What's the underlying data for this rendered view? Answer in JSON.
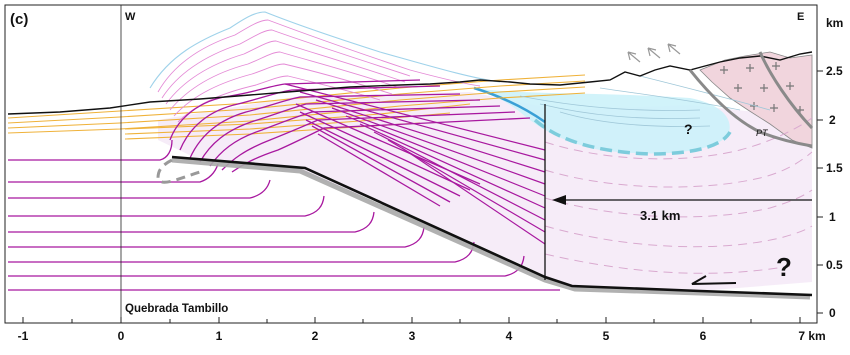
{
  "panel_label": "(c)",
  "west_label": "W",
  "east_label": "E",
  "location_label": "Quebrada Tambillo",
  "shortening_label": "3.1 km",
  "unknown_marks": [
    "?",
    "?"
  ],
  "fault_label": "PT",
  "x_axis": {
    "ticks": [
      "-1",
      "0",
      "1",
      "2",
      "3",
      "4",
      "5",
      "6",
      "7 km"
    ],
    "values": [
      -1,
      0,
      1,
      2,
      3,
      4,
      5,
      6,
      7
    ]
  },
  "y_axis": {
    "unit": "km",
    "ticks": [
      "2.5",
      "2",
      "1.5",
      "1",
      "0.5",
      "0"
    ],
    "values": [
      2.5,
      2,
      1.5,
      1,
      0.5,
      0
    ]
  },
  "colors": {
    "strata": "#a8189f",
    "eroded_strata": "#e48ad6",
    "early_eroded": "#9fd2ea",
    "young_fill": "#efb23a",
    "basin_fill": "#ccf2f9",
    "basin_outline": "#7dccdc",
    "hanging_wall": "#f3e6f6",
    "basement": "#f1d5dd",
    "fault": "#111111",
    "fault_shadow": "#a8a8a8"
  }
}
